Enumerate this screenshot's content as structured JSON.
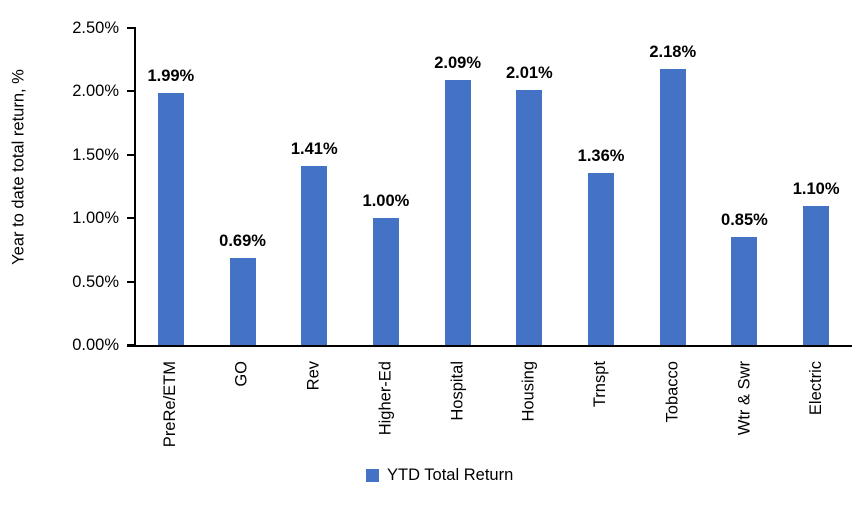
{
  "chart_data": {
    "type": "bar",
    "title": "",
    "categories": [
      "PreRe/ETM",
      "GO",
      "Rev",
      "Higher-Ed",
      "Hospital",
      "Housing",
      "Trnspt",
      "Tobacco",
      "Wtr & Swr",
      "Electric"
    ],
    "values": [
      1.99,
      0.69,
      1.41,
      1.0,
      2.09,
      2.01,
      1.36,
      2.18,
      0.85,
      1.1
    ],
    "value_labels": [
      "1.99%",
      "0.69%",
      "1.41%",
      "1.00%",
      "2.09%",
      "2.01%",
      "1.36%",
      "2.18%",
      "0.85%",
      "1.10%"
    ],
    "xlabel": "",
    "ylabel": "Year to date total return, %",
    "ylim": [
      0,
      2.5
    ],
    "ytick_values": [
      0,
      0.5,
      1.0,
      1.5,
      2.0,
      2.5
    ],
    "ytick_labels": [
      "0.00%",
      "0.50%",
      "1.00%",
      "1.50%",
      "2.00%",
      "2.50%"
    ],
    "grid": false,
    "legend_position": "bottom",
    "legend_entries": [
      {
        "label": "YTD Total Return",
        "color": "#4472C4"
      }
    ],
    "bar_color": "#4472C4",
    "axis_color": "#000000",
    "text_color": "#000000",
    "background_color": "#FFFFFF"
  }
}
